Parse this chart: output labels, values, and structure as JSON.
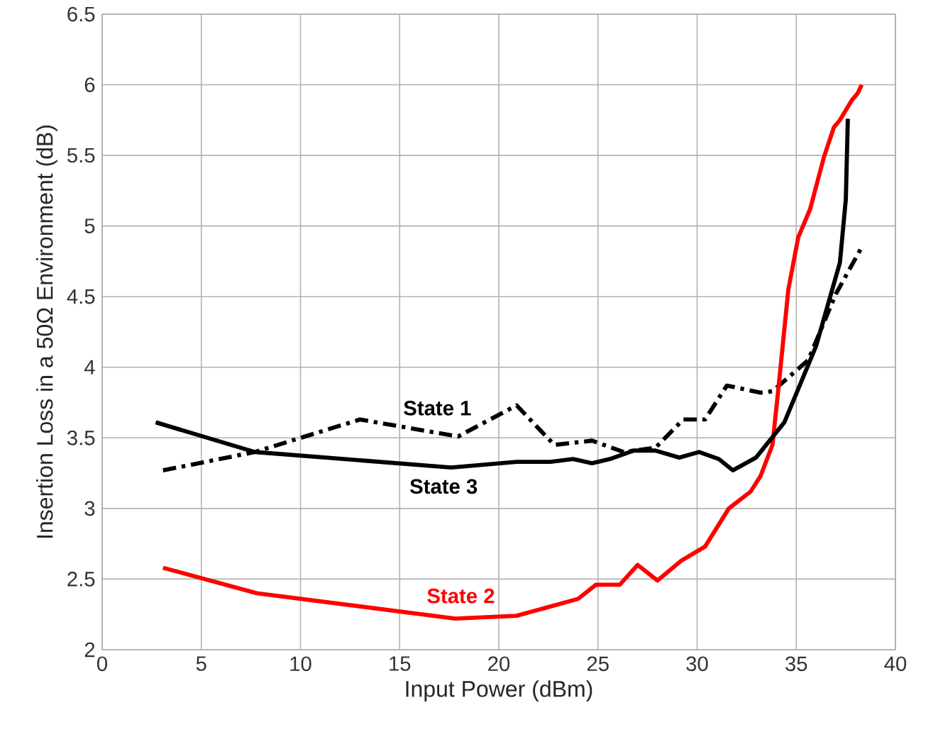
{
  "chart_data": {
    "type": "line",
    "xlabel": "Input Power (dBm)",
    "ylabel": "Insertion Loss in a 50Ω Environment (dB)",
    "xlim": [
      0,
      40
    ],
    "xticks": [
      0,
      5,
      10,
      15,
      20,
      25,
      30,
      35,
      40
    ],
    "ylim": [
      2,
      6.5
    ],
    "yticks": [
      2,
      2.5,
      3,
      3.5,
      4,
      4.5,
      5,
      5.5,
      6,
      6.5
    ],
    "grid": true,
    "marker": "none",
    "series": [
      {
        "name": "State 1",
        "color": "#000000",
        "line_style": "dashed",
        "x": [
          3.07,
          7.7,
          13.0,
          17.95,
          20.9,
          22.8,
          24.7,
          26.3,
          27.9,
          29.3,
          30.4,
          31.5,
          33.2,
          33.8,
          35.6,
          37.0,
          38.3
        ],
        "values": [
          3.27,
          3.4,
          3.63,
          3.51,
          3.73,
          3.45,
          3.48,
          3.4,
          3.43,
          3.63,
          3.63,
          3.87,
          3.82,
          3.83,
          4.05,
          4.52,
          4.85
        ]
      },
      {
        "name": "State 2",
        "color": "#ff0000",
        "line_style": "solid",
        "x": [
          3.07,
          7.8,
          17.8,
          20.9,
          24.0,
          24.9,
          26.1,
          27.0,
          28.0,
          29.2,
          30.4,
          31.6,
          32.7,
          33.2,
          33.8,
          34.1,
          34.6,
          35.1,
          35.7,
          36.4,
          36.9,
          37.2,
          37.8,
          38.1,
          38.3
        ],
        "values": [
          2.58,
          2.4,
          2.22,
          2.24,
          2.36,
          2.46,
          2.46,
          2.6,
          2.49,
          2.63,
          2.73,
          3.0,
          3.12,
          3.23,
          3.45,
          3.85,
          4.55,
          4.92,
          5.12,
          5.49,
          5.7,
          5.75,
          5.89,
          5.94,
          6.0
        ]
      },
      {
        "name": "State 3",
        "color": "#000000",
        "line_style": "solid",
        "x": [
          2.7,
          7.7,
          17.6,
          20.9,
          22.6,
          23.75,
          24.7,
          25.6,
          26.8,
          27.9,
          29.1,
          30.1,
          31.1,
          31.8,
          32.97,
          34.4,
          36.0,
          37.2,
          37.5,
          37.6
        ],
        "values": [
          3.61,
          3.4,
          3.29,
          3.33,
          3.33,
          3.35,
          3.32,
          3.35,
          3.41,
          3.41,
          3.36,
          3.4,
          3.35,
          3.27,
          3.36,
          3.61,
          4.15,
          4.74,
          5.19,
          5.76
        ]
      }
    ]
  }
}
